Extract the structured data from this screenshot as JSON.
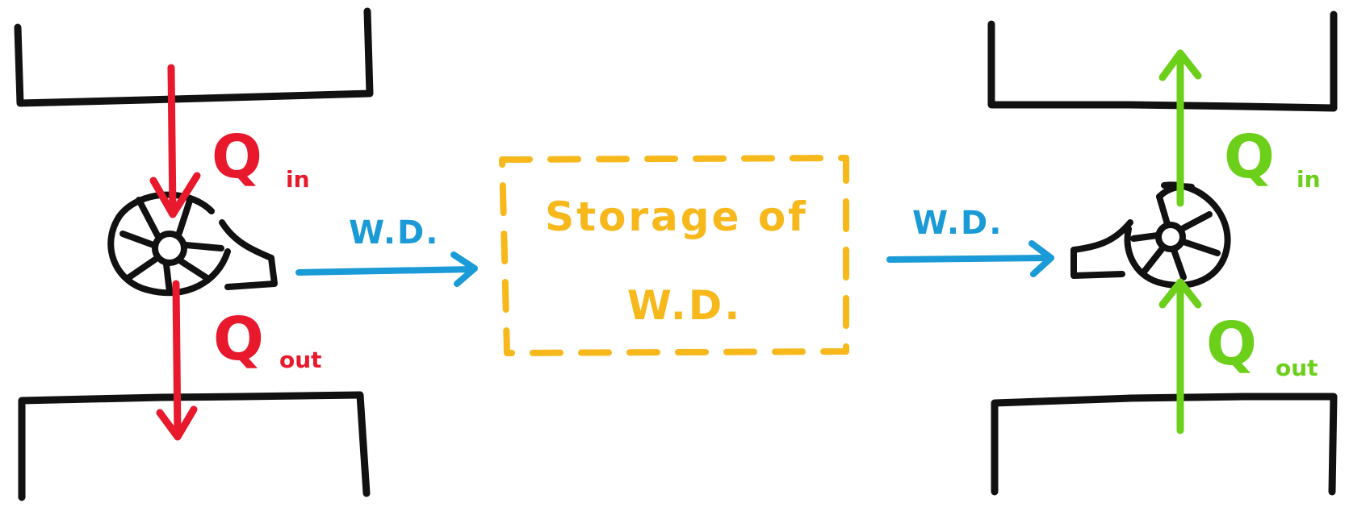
{
  "colors": {
    "reservoir": "#111111",
    "engine_heat": "#e8192c",
    "work": "#1a9ad6",
    "storage": "#f7b81b",
    "pump_heat": "#6ccf1a"
  },
  "left_engine": {
    "q_in": {
      "symbol": "Q",
      "subscript": "in"
    },
    "q_out": {
      "symbol": "Q",
      "subscript": "out"
    },
    "work_label": "W.D."
  },
  "storage_box": {
    "line1": "Storage of",
    "line2": "W.D."
  },
  "right_pump": {
    "work_label": "W.D.",
    "q_in": {
      "symbol": "Q",
      "subscript": "in"
    },
    "q_out": {
      "symbol": "Q",
      "subscript": "out"
    }
  }
}
